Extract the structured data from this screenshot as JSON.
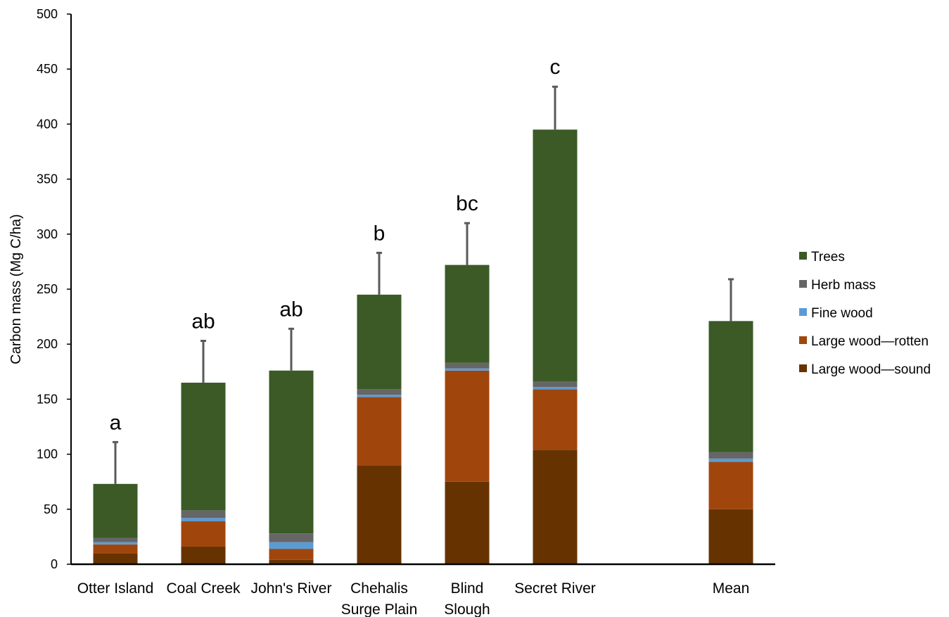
{
  "chart_data": {
    "type": "bar",
    "stacked": true,
    "ylabel": "Carbon mass (Mg C/ha)",
    "xlabel": "",
    "ylim": [
      0,
      500
    ],
    "yticks": [
      0,
      50,
      100,
      150,
      200,
      250,
      300,
      350,
      400,
      450,
      500
    ],
    "grid": false,
    "legend_position": "right",
    "categories": [
      [
        "Otter Island"
      ],
      [
        "Coal Creek"
      ],
      [
        "John's River"
      ],
      [
        "Chehalis",
        "Surge Plain"
      ],
      [
        "Blind",
        "Slough"
      ],
      [
        "Secret River"
      ],
      [
        "Mean"
      ]
    ],
    "category_gap_before_last": true,
    "series": [
      {
        "name": "Large wood—sound",
        "color": "#663300",
        "values": [
          10,
          16,
          4,
          90,
          75,
          104,
          50
        ]
      },
      {
        "name": "Large wood—rotten",
        "color": "#a0460c",
        "values": [
          8,
          23,
          10,
          62,
          101,
          55,
          43
        ]
      },
      {
        "name": "Fine wood",
        "color": "#5b9bd5",
        "values": [
          2,
          3,
          6,
          2,
          2,
          2,
          3
        ]
      },
      {
        "name": "Herb mass",
        "color": "#666666",
        "values": [
          4,
          7,
          8,
          5,
          5,
          5,
          6
        ]
      },
      {
        "name": "Trees",
        "color": "#3b5a26",
        "values": [
          49,
          116,
          148,
          86,
          89,
          229,
          119
        ]
      }
    ],
    "totals": [
      73,
      165,
      176,
      245,
      272,
      395,
      221
    ],
    "error_upper": [
      111,
      203,
      214,
      283,
      310,
      434,
      259
    ],
    "significance_letters": [
      "a",
      "ab",
      "ab",
      "b",
      "bc",
      "c",
      ""
    ],
    "legend_order": [
      "Trees",
      "Herb mass",
      "Fine wood",
      "Large wood—rotten",
      "Large wood—sound"
    ],
    "errorbar_color": "#5a5a5a"
  }
}
